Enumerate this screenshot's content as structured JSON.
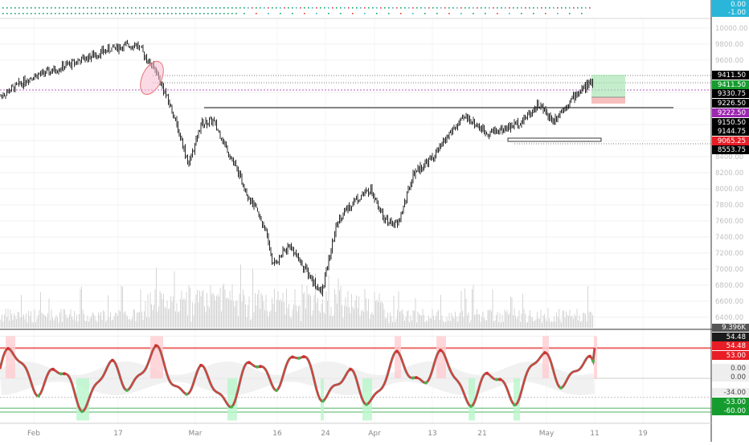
{
  "top_badges": [
    {
      "text": "0.00",
      "bg": "#29b6d8",
      "fg": "#ffffff"
    },
    {
      "text": "-1.00",
      "bg": "#29b6d8",
      "fg": "#ffffff"
    }
  ],
  "price_ticks": [
    "10000.00",
    "9800.00",
    "9600.00",
    "9200.00",
    "9000.00",
    "8800.00",
    "8600.00",
    "8400.00",
    "8200.00",
    "8000.00",
    "7800.00",
    "7600.00",
    "7400.00",
    "7200.00",
    "7000.00",
    "6800.00",
    "6600.00",
    "6400.00"
  ],
  "price_labels": [
    {
      "text": "9411.50",
      "bg": "#000000",
      "fg": "#ffffff"
    },
    {
      "text": "9411.50",
      "bg": "#159c2e",
      "fg": "#ffffff"
    },
    {
      "text": "9330.75",
      "bg": "#000000",
      "fg": "#ffffff"
    },
    {
      "text": "9226.50",
      "bg": "#000000",
      "fg": "#ffffff"
    },
    {
      "text": "9222.50",
      "bg": "#9c27b0",
      "fg": "#ffffff"
    },
    {
      "text": "9150.50",
      "bg": "#000000",
      "fg": "#ffffff"
    },
    {
      "text": "9144.75",
      "bg": "#000000",
      "fg": "#ffffff"
    },
    {
      "text": "9065.25",
      "bg": "#e81d25",
      "fg": "#ffffff"
    },
    {
      "text": "8553.75",
      "bg": "#000000",
      "fg": "#ffffff"
    }
  ],
  "volume_label": {
    "text": "9.396K",
    "bg": "#555555",
    "fg": "#ffffff"
  },
  "osc_labels": [
    {
      "text": "54.48",
      "bg": "#1b1b1b",
      "fg": "#ffffff"
    },
    {
      "text": "54.48",
      "bg": "#e81d25",
      "fg": "#ffffff"
    },
    {
      "text": "53.00",
      "bg": "#e81d25",
      "fg": "#ffffff"
    },
    {
      "text": "0.00",
      "bg": "#eeeeee",
      "fg": "#444444"
    },
    {
      "text": "0.00",
      "bg": "#eeeeee",
      "fg": "#444444"
    },
    {
      "text": "-34.00",
      "bg": "#eeeeee",
      "fg": "#444444"
    },
    {
      "text": "-53.00",
      "bg": "#159c2e",
      "fg": "#ffffff"
    },
    {
      "text": "-60.00",
      "bg": "#159c2e",
      "fg": "#ffffff"
    }
  ],
  "time_ticks": [
    "Feb",
    "17",
    "Mar",
    "16",
    "24",
    "Apr",
    "13",
    "21",
    "May",
    "11",
    "19"
  ],
  "colors": {
    "candle": "#111111",
    "volume": "#d5d5d5",
    "osc_line": "#e53935",
    "osc_line2": "#8bc34a",
    "overbought": "#ffcdd2",
    "oversold": "#b9f6ca",
    "highlight_ellipse": "#f8bbd0",
    "accent_purple": "#9c27b0"
  },
  "chart_data": [
    {
      "type": "candlestick",
      "title": "",
      "x_ticks": [
        "Feb",
        "17",
        "Mar",
        "16",
        "24",
        "Apr",
        "13",
        "21",
        "May",
        "11",
        "19"
      ],
      "ylim": [
        6300,
        10100
      ],
      "key_levels": [
        9411.5,
        9330.75,
        9226.5,
        9222.5,
        9144.75,
        9065.25,
        8553.75
      ],
      "close_path": [
        {
          "x": "Feb",
          "close": 9150
        },
        {
          "x": "17",
          "close": 9800
        },
        {
          "x": "Mar",
          "close": 8400
        },
        {
          "x": "16",
          "close": 7100
        },
        {
          "x": "24",
          "close": 6700
        },
        {
          "x": "Apr",
          "close": 8000
        },
        {
          "x": "13",
          "close": 8900
        },
        {
          "x": "21",
          "close": 8700
        },
        {
          "x": "May",
          "close": 8850
        },
        {
          "x": "11",
          "close": 9330.75
        }
      ],
      "volume_last": "9.396K"
    },
    {
      "type": "line",
      "title": "",
      "levels": [
        54.48,
        53.0,
        0.0,
        -34.0,
        -53.0,
        -60.0
      ],
      "last_value": 54.48
    }
  ]
}
